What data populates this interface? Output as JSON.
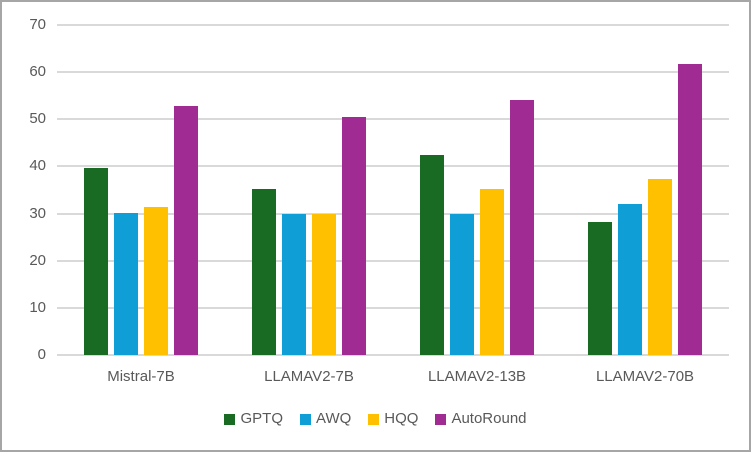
{
  "chart_data": {
    "type": "bar",
    "title": "",
    "xlabel": "",
    "ylabel": "",
    "categories": [
      "Mistral-7B",
      "LLAMAV2-7B",
      "LLAMAV2-13B",
      "LLAMAV2-70B"
    ],
    "series": [
      {
        "name": "GPTQ",
        "color": "#196B24",
        "values": [
          39.6,
          35.3,
          42.4,
          28.3
        ]
      },
      {
        "name": "AWQ",
        "color": "#0F9ED5",
        "values": [
          30.1,
          30.0,
          29.9,
          32.1
        ]
      },
      {
        "name": "HQQ",
        "color": "#FFC000",
        "values": [
          31.3,
          29.9,
          35.2,
          37.4
        ]
      },
      {
        "name": "AutoRound",
        "color": "#A02B93",
        "values": [
          52.9,
          50.4,
          54.1,
          61.8
        ]
      }
    ],
    "ylim": [
      0,
      70
    ],
    "yticks": [
      0,
      10,
      20,
      30,
      40,
      50,
      60,
      70
    ],
    "grid": true,
    "legend_position": "bottom",
    "colors": {
      "axis_text": "#595959",
      "gridline": "#D9D9D9",
      "frame_border": "#A6A6A6",
      "background": "#FFFFFF"
    }
  }
}
